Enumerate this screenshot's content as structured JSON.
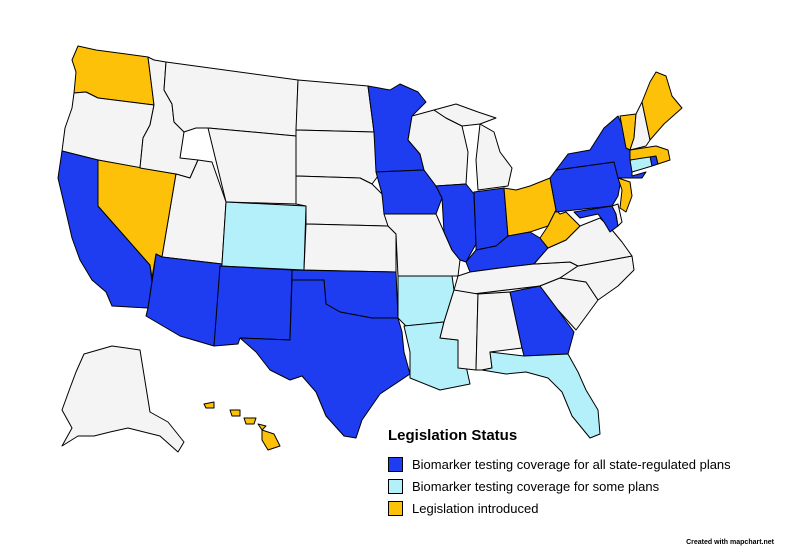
{
  "colors": {
    "full": "#1e3cf0",
    "some": "#b4f0fa",
    "introduced": "#fdc10a",
    "none": "#f4f4f4"
  },
  "legend": {
    "title": "Legislation Status",
    "items": [
      {
        "label": "Biomarker testing coverage for all state-regulated plans",
        "status": "full"
      },
      {
        "label": "Biomarker testing coverage for some plans",
        "status": "some"
      },
      {
        "label": "Legislation introduced",
        "status": "introduced"
      }
    ]
  },
  "states": [
    {
      "name": "WA",
      "status": "introduced"
    },
    {
      "name": "OR",
      "status": "none"
    },
    {
      "name": "CA",
      "status": "full"
    },
    {
      "name": "NV",
      "status": "introduced"
    },
    {
      "name": "ID",
      "status": "none"
    },
    {
      "name": "MT",
      "status": "none"
    },
    {
      "name": "WY",
      "status": "none"
    },
    {
      "name": "UT",
      "status": "none"
    },
    {
      "name": "CO",
      "status": "some"
    },
    {
      "name": "AZ",
      "status": "full"
    },
    {
      "name": "NM",
      "status": "full"
    },
    {
      "name": "ND",
      "status": "none"
    },
    {
      "name": "SD",
      "status": "none"
    },
    {
      "name": "NE",
      "status": "none"
    },
    {
      "name": "KS",
      "status": "none"
    },
    {
      "name": "OK",
      "status": "full"
    },
    {
      "name": "TX",
      "status": "full"
    },
    {
      "name": "MN",
      "status": "full"
    },
    {
      "name": "IA",
      "status": "full"
    },
    {
      "name": "MO",
      "status": "none"
    },
    {
      "name": "AR",
      "status": "some"
    },
    {
      "name": "LA",
      "status": "some"
    },
    {
      "name": "WI",
      "status": "none"
    },
    {
      "name": "IL",
      "status": "full"
    },
    {
      "name": "MI",
      "status": "none"
    },
    {
      "name": "IN",
      "status": "full"
    },
    {
      "name": "OH",
      "status": "introduced"
    },
    {
      "name": "KY",
      "status": "full"
    },
    {
      "name": "TN",
      "status": "none"
    },
    {
      "name": "MS",
      "status": "none"
    },
    {
      "name": "AL",
      "status": "none"
    },
    {
      "name": "GA",
      "status": "full"
    },
    {
      "name": "FL",
      "status": "some"
    },
    {
      "name": "SC",
      "status": "none"
    },
    {
      "name": "NC",
      "status": "none"
    },
    {
      "name": "VA",
      "status": "none"
    },
    {
      "name": "WV",
      "status": "introduced"
    },
    {
      "name": "MD",
      "status": "full"
    },
    {
      "name": "DE",
      "status": "none"
    },
    {
      "name": "PA",
      "status": "full"
    },
    {
      "name": "NJ",
      "status": "introduced"
    },
    {
      "name": "NY",
      "status": "full"
    },
    {
      "name": "CT",
      "status": "some"
    },
    {
      "name": "RI",
      "status": "full"
    },
    {
      "name": "MA",
      "status": "introduced"
    },
    {
      "name": "VT",
      "status": "introduced"
    },
    {
      "name": "NH",
      "status": "none"
    },
    {
      "name": "ME",
      "status": "introduced"
    },
    {
      "name": "AK",
      "status": "none"
    },
    {
      "name": "HI",
      "status": "introduced"
    }
  ],
  "credit": "Created with mapchart.net"
}
